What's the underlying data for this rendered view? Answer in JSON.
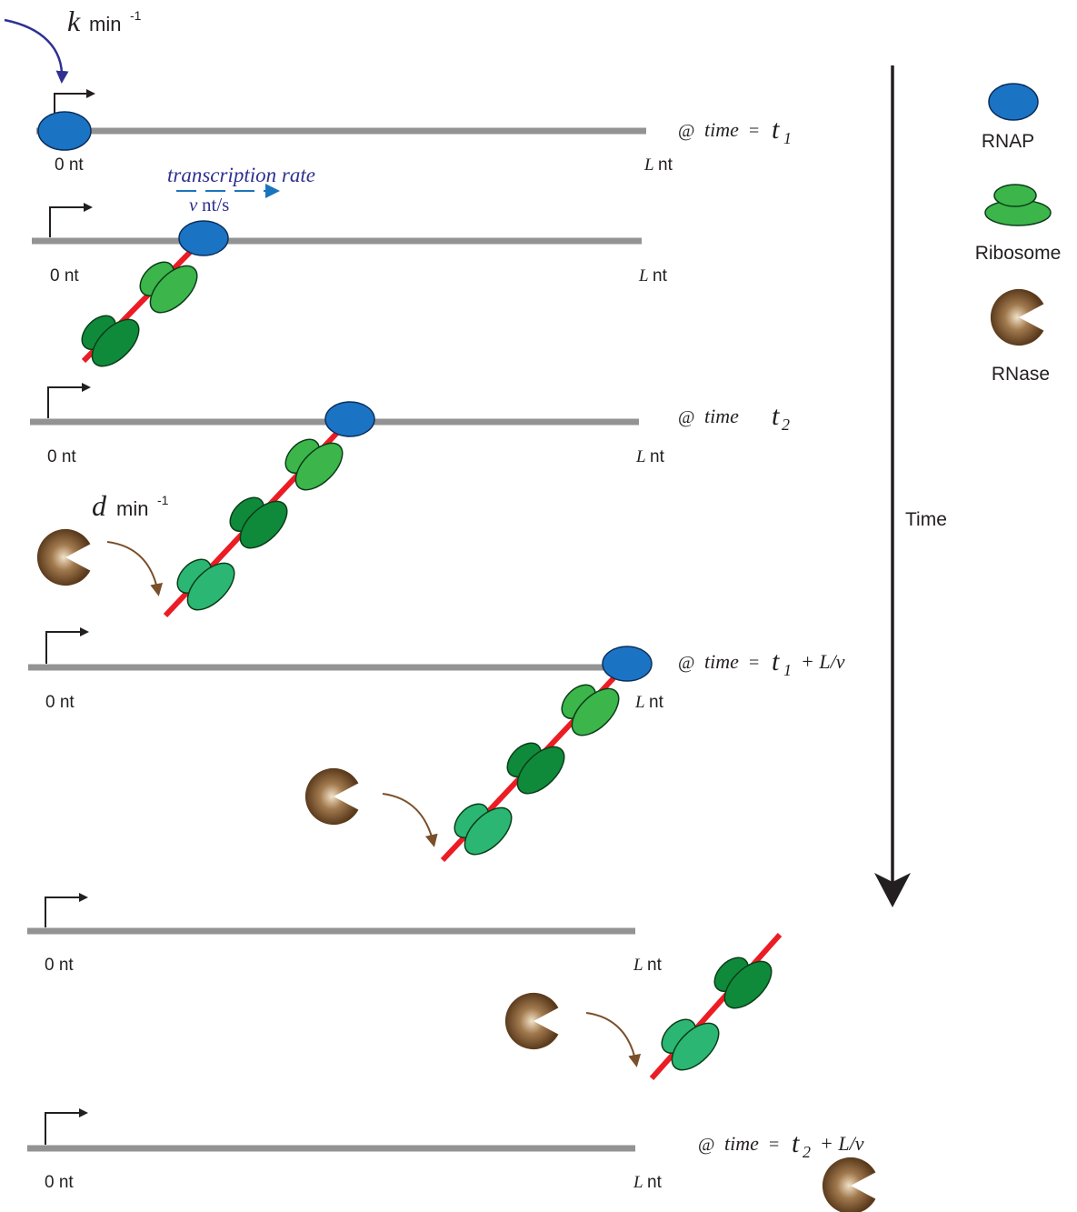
{
  "rate_labels": {
    "k_symbol": "k",
    "k_unit": "min",
    "k_exp": "-1",
    "d_symbol": "d",
    "d_unit": "min",
    "d_exp": "-1"
  },
  "transcription": {
    "label": "transcription rate",
    "v": "v",
    "v_unit": "nt/s"
  },
  "positions": {
    "start": "0 nt",
    "end_symbol": "L",
    "end_unit": "nt"
  },
  "time_labels": {
    "t1": {
      "at": "@",
      "time": "time",
      "eq": "=",
      "t": "t",
      "sub": "1",
      "extra": ""
    },
    "t2": {
      "at": "@",
      "time": "time",
      "eq": "",
      "t": "t",
      "sub": "2",
      "extra": ""
    },
    "t1Lv": {
      "at": "@",
      "time": "time",
      "eq": "=",
      "t": "t",
      "sub": "1",
      "extra": "+ L/v"
    },
    "t2Lv": {
      "at": "@",
      "time": "time",
      "eq": "=",
      "t": "t",
      "sub": "2",
      "extra": "+ L/v"
    }
  },
  "time_axis": {
    "label": "Time"
  },
  "legend": {
    "rnap": "RNAP",
    "ribosome": "Ribosome",
    "rnase": "RNase"
  },
  "colors": {
    "dna": "#939393",
    "mrna": "#ec1c24",
    "rnap": "#1b73c4",
    "ribosome_light": "#3cb54a",
    "ribosome_dark": "#0f8a3a",
    "ribosome_mid": "#2bb673",
    "rnase": "#7a5230",
    "k_arrow": "#2e3192",
    "transcription_text": "#2e3192",
    "transcription_arrow": "#1b75bc",
    "d_arrow": "#7a4f2a"
  }
}
